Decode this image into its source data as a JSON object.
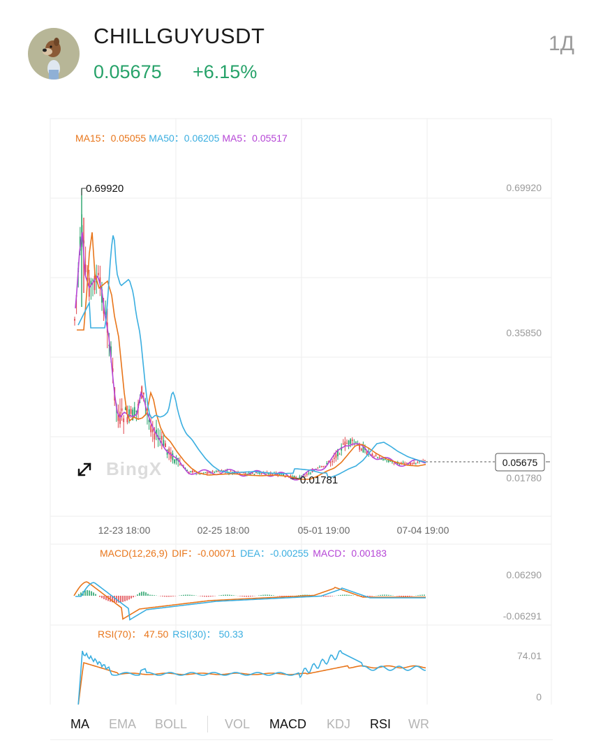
{
  "header": {
    "symbol": "CHILLGUYUSDT",
    "price": "0.05675",
    "change": "+6.15%",
    "interval": "1Д",
    "avatar_icon": "chill-guy-dog-avatar"
  },
  "colors": {
    "up": "#26a269",
    "down": "#e0454b",
    "ma15": "#e8751a",
    "ma50": "#3aaee0",
    "ma5": "#b545d6"
  },
  "main_chart": {
    "legend": {
      "ma15_label": "MA15：",
      "ma15_value": "0.05055",
      "ma50_label": "MA50：",
      "ma50_value": "0.06205",
      "ma5_label": "MA5：",
      "ma5_value": "0.05517"
    },
    "y_axis_labels": [
      "0.69920",
      "0.35850",
      "0.01780"
    ],
    "x_axis_labels": [
      "12-23 18:00",
      "02-25 18:00",
      "05-01 19:00",
      "07-04 19:00"
    ],
    "high_marker": "0.69920",
    "low_marker": "0.01781",
    "current_price_tag": "0.05675",
    "watermark": "BingX"
  },
  "macd": {
    "legend": {
      "title": "MACD(12,26,9)",
      "dif_label": "DIF：",
      "dif_value": "-0.00071",
      "dea_label": "DEA：",
      "dea_value": "-0.00255",
      "macd_label": "MACD：",
      "macd_value": "0.00183"
    },
    "y_axis_labels": [
      "0.06290",
      "-0.06291"
    ]
  },
  "rsi": {
    "legend": {
      "rsi70_label": "RSI(70)：",
      "rsi70_value": "47.50",
      "rsi30_label": "RSI(30)：",
      "rsi30_value": "50.33"
    },
    "y_axis_labels": [
      "74.01",
      "0"
    ]
  },
  "tabs": [
    {
      "label": "MA",
      "active": true
    },
    {
      "label": "EMA",
      "active": false
    },
    {
      "label": "BOLL",
      "active": false
    },
    {
      "label": "VOL",
      "active": false
    },
    {
      "label": "MACD",
      "active": true
    },
    {
      "label": "KDJ",
      "active": false
    },
    {
      "label": "RSI",
      "active": true
    },
    {
      "label": "WR",
      "active": false
    }
  ]
}
